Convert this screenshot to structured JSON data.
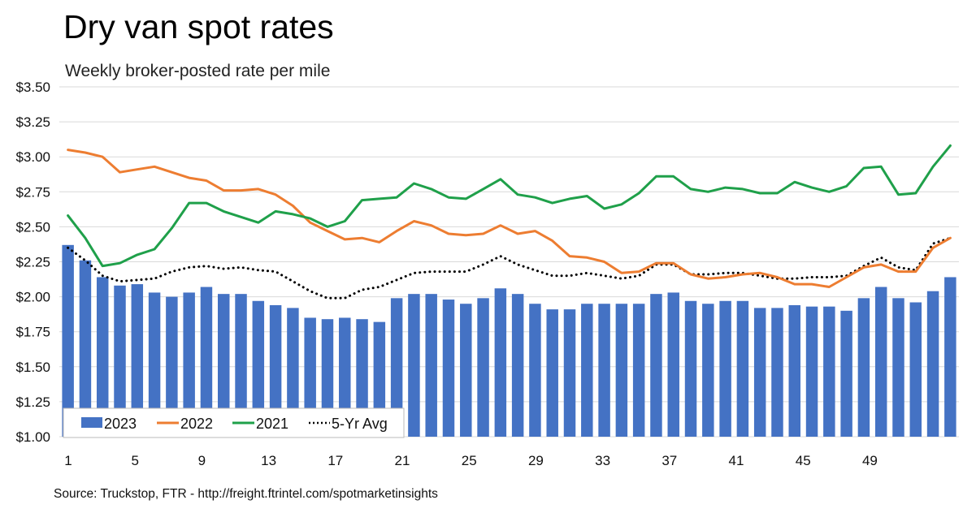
{
  "chart_data": {
    "type": "bar",
    "title": "Dry van spot rates",
    "subtitle": "Weekly broker-posted rate per mile",
    "source": "Source: Truckstop, FTR - http://freight.ftrintel.com/spotmarketinsights",
    "ylim": [
      1.0,
      3.5
    ],
    "ytick_values": [
      1.0,
      1.25,
      1.5,
      1.75,
      2.0,
      2.25,
      2.5,
      2.75,
      3.0,
      3.25,
      3.5
    ],
    "ytick_labels": [
      "$1.00",
      "$1.25",
      "$1.50",
      "$1.75",
      "$2.00",
      "$2.25",
      "$2.50",
      "$2.75",
      "$3.00",
      "$3.25",
      "$3.50"
    ],
    "xtick_labels": [
      "1",
      "5",
      "9",
      "13",
      "17",
      "21",
      "25",
      "29",
      "33",
      "37",
      "41",
      "45",
      "49"
    ],
    "x": [
      1,
      2,
      3,
      4,
      5,
      6,
      7,
      8,
      9,
      10,
      11,
      12,
      13,
      14,
      15,
      16,
      17,
      18,
      19,
      20,
      21,
      22,
      23,
      24,
      25,
      26,
      27,
      28,
      29,
      30,
      31,
      32,
      33,
      34,
      35,
      36,
      37,
      38,
      39,
      40,
      41,
      42,
      43,
      44,
      45,
      46,
      47,
      48,
      49,
      50,
      51,
      52
    ],
    "grid": true,
    "legend_position": "bottom-left",
    "series": [
      {
        "name": "2023",
        "kind": "bar",
        "color": "#4472C4",
        "values": [
          2.37,
          2.26,
          2.14,
          2.08,
          2.09,
          2.03,
          2.0,
          2.03,
          2.07,
          2.02,
          2.02,
          1.97,
          1.94,
          1.92,
          1.85,
          1.84,
          1.85,
          1.84,
          1.82,
          1.99,
          2.02,
          2.02,
          1.98,
          1.95,
          1.99,
          2.06,
          2.02,
          1.95,
          1.91,
          1.91,
          1.95,
          1.95,
          1.95,
          1.95,
          2.02,
          2.03,
          1.97,
          1.95,
          1.97,
          1.97,
          1.92,
          1.92,
          1.94,
          1.93,
          1.93,
          1.9,
          1.99,
          2.07,
          1.99,
          1.96,
          2.04,
          2.14
        ]
      },
      {
        "name": "2022",
        "kind": "line",
        "color": "#ED7D31",
        "values": [
          3.05,
          3.03,
          3.0,
          2.89,
          2.91,
          2.93,
          2.89,
          2.85,
          2.83,
          2.76,
          2.76,
          2.77,
          2.73,
          2.65,
          2.53,
          2.47,
          2.41,
          2.42,
          2.39,
          2.47,
          2.54,
          2.51,
          2.45,
          2.44,
          2.45,
          2.51,
          2.45,
          2.47,
          2.4,
          2.29,
          2.28,
          2.25,
          2.17,
          2.18,
          2.24,
          2.24,
          2.16,
          2.13,
          2.14,
          2.16,
          2.17,
          2.14,
          2.09,
          2.09,
          2.07,
          2.14,
          2.21,
          2.23,
          2.18,
          2.18,
          2.35,
          2.42
        ]
      },
      {
        "name": "2021",
        "kind": "line",
        "color": "#1FA04A",
        "values": [
          2.58,
          2.42,
          2.22,
          2.24,
          2.3,
          2.34,
          2.49,
          2.67,
          2.67,
          2.61,
          2.57,
          2.53,
          2.61,
          2.59,
          2.56,
          2.5,
          2.54,
          2.69,
          2.7,
          2.71,
          2.81,
          2.77,
          2.71,
          2.7,
          2.77,
          2.84,
          2.73,
          2.71,
          2.67,
          2.7,
          2.72,
          2.63,
          2.66,
          2.74,
          2.86,
          2.86,
          2.77,
          2.75,
          2.78,
          2.77,
          2.74,
          2.74,
          2.82,
          2.78,
          2.75,
          2.79,
          2.92,
          2.93,
          2.73,
          2.74,
          2.93,
          3.08
        ]
      },
      {
        "name": "5-Yr Avg",
        "kind": "dotted-line",
        "color": "#000000",
        "values": [
          2.35,
          2.26,
          2.15,
          2.11,
          2.12,
          2.13,
          2.18,
          2.21,
          2.22,
          2.2,
          2.21,
          2.19,
          2.18,
          2.11,
          2.04,
          1.99,
          1.99,
          2.05,
          2.07,
          2.12,
          2.17,
          2.18,
          2.18,
          2.18,
          2.23,
          2.29,
          2.23,
          2.19,
          2.15,
          2.15,
          2.17,
          2.15,
          2.13,
          2.15,
          2.23,
          2.23,
          2.16,
          2.16,
          2.17,
          2.17,
          2.15,
          2.13,
          2.13,
          2.14,
          2.14,
          2.15,
          2.22,
          2.28,
          2.21,
          2.19,
          2.38,
          2.42
        ]
      }
    ]
  }
}
